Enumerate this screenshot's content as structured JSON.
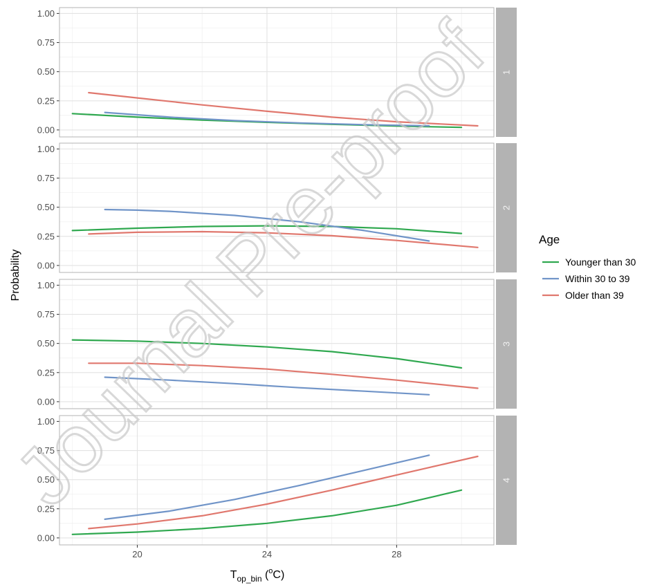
{
  "chart_data": {
    "type": "line",
    "ylabel": "Probability",
    "xlabel": {
      "base": "T",
      "sub": "op_bin",
      "unit_open": " (",
      "unit_sup": "o",
      "unit_close": "C)"
    },
    "xlim": [
      17.6,
      31.0
    ],
    "ylim": [
      -0.06,
      1.05
    ],
    "x_ticks": [
      20,
      24,
      28
    ],
    "y_ticks": [
      0.0,
      0.25,
      0.5,
      0.75,
      1.0
    ],
    "y_tick_labels": [
      "0.00",
      "0.25",
      "0.50",
      "0.75",
      "1.00"
    ],
    "grid": true,
    "legend": {
      "title": "Age",
      "placement": "right",
      "entries": [
        {
          "label": "Younger than 30",
          "color": "#2fa84f"
        },
        {
          "label": "Within 30 to 39",
          "color": "#7094c8"
        },
        {
          "label": "Older than 39",
          "color": "#e0776d"
        }
      ]
    },
    "panels": [
      {
        "strip": "1",
        "series": [
          {
            "name": "Younger than 30",
            "color": "#2fa84f",
            "x": [
              18,
              20,
              22,
              24,
              26,
              28,
              30
            ],
            "values": [
              0.14,
              0.11,
              0.085,
              0.065,
              0.048,
              0.033,
              0.022
            ]
          },
          {
            "name": "Within 30 to 39",
            "color": "#7094c8",
            "x": [
              19,
              21,
              23,
              25,
              27,
              29
            ],
            "values": [
              0.15,
              0.11,
              0.08,
              0.06,
              0.045,
              0.035
            ]
          },
          {
            "name": "Older than 39",
            "color": "#e0776d",
            "x": [
              18.5,
              20,
              22,
              24,
              26,
              28,
              30.5
            ],
            "values": [
              0.32,
              0.275,
              0.215,
              0.16,
              0.11,
              0.07,
              0.035
            ]
          }
        ]
      },
      {
        "strip": "2",
        "series": [
          {
            "name": "Younger than 30",
            "color": "#2fa84f",
            "x": [
              18,
              20,
              22,
              24,
              26,
              28,
              30
            ],
            "values": [
              0.3,
              0.32,
              0.335,
              0.34,
              0.335,
              0.315,
              0.275
            ]
          },
          {
            "name": "Within 30 to 39",
            "color": "#7094c8",
            "x": [
              19,
              20,
              21,
              23,
              25,
              27,
              29
            ],
            "values": [
              0.48,
              0.475,
              0.465,
              0.43,
              0.375,
              0.3,
              0.21
            ]
          },
          {
            "name": "Older than 39",
            "color": "#e0776d",
            "x": [
              18.5,
              20,
              22,
              24,
              26,
              28,
              30.5
            ],
            "values": [
              0.27,
              0.285,
              0.29,
              0.28,
              0.255,
              0.215,
              0.155
            ]
          }
        ]
      },
      {
        "strip": "3",
        "series": [
          {
            "name": "Younger than 30",
            "color": "#2fa84f",
            "x": [
              18,
              20,
              22,
              24,
              26,
              28,
              30
            ],
            "values": [
              0.53,
              0.52,
              0.5,
              0.47,
              0.43,
              0.37,
              0.29
            ]
          },
          {
            "name": "Within 30 to 39",
            "color": "#7094c8",
            "x": [
              19,
              21,
              23,
              25,
              27,
              29
            ],
            "values": [
              0.21,
              0.185,
              0.155,
              0.12,
              0.09,
              0.06
            ]
          },
          {
            "name": "Older than 39",
            "color": "#e0776d",
            "x": [
              18.5,
              20,
              22,
              24,
              26,
              28,
              30.5
            ],
            "values": [
              0.33,
              0.33,
              0.31,
              0.28,
              0.235,
              0.185,
              0.115
            ]
          }
        ]
      },
      {
        "strip": "4",
        "series": [
          {
            "name": "Younger than 30",
            "color": "#2fa84f",
            "x": [
              18,
              20,
              22,
              24,
              26,
              28,
              30
            ],
            "values": [
              0.03,
              0.05,
              0.08,
              0.125,
              0.19,
              0.28,
              0.41
            ]
          },
          {
            "name": "Within 30 to 39",
            "color": "#7094c8",
            "x": [
              19,
              21,
              23,
              25,
              27,
              29
            ],
            "values": [
              0.16,
              0.23,
              0.33,
              0.45,
              0.58,
              0.71
            ]
          },
          {
            "name": "Older than 39",
            "color": "#e0776d",
            "x": [
              18.5,
              20,
              22,
              24,
              26,
              28,
              30.5
            ],
            "values": [
              0.08,
              0.12,
              0.19,
              0.29,
              0.41,
              0.54,
              0.7
            ]
          }
        ]
      }
    ]
  },
  "watermark": "Journal Pre-proof"
}
